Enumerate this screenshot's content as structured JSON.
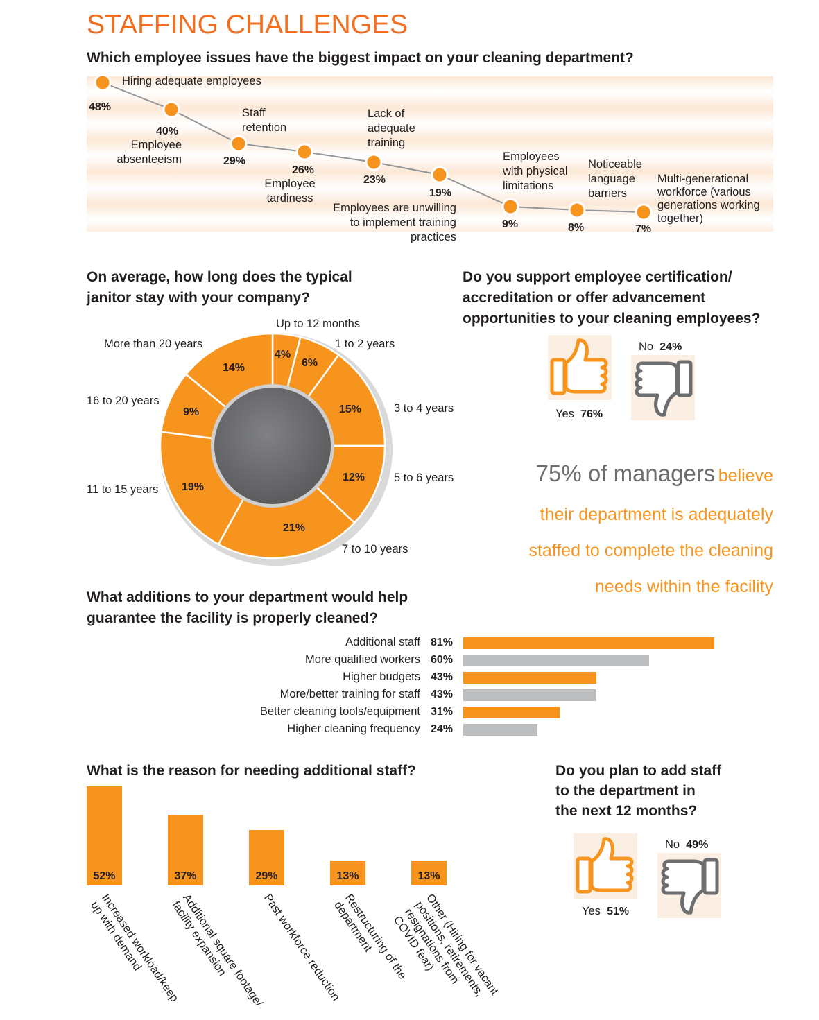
{
  "title": "STAFFING CHALLENGES",
  "colors": {
    "orange": "#f7941d",
    "gray": "#bcbec0",
    "title_orange": "#f26f21",
    "donut_center": "#6d6e70"
  },
  "q1": {
    "question": "Which employee issues have the biggest impact on your cleaning department?",
    "items": [
      {
        "label": "Hiring adequate employees",
        "pct": "48%"
      },
      {
        "label": "Employee absenteeism",
        "pct": "40%"
      },
      {
        "label": "Staff retention",
        "pct": "29%"
      },
      {
        "label": "Employee tardiness",
        "pct": "26%"
      },
      {
        "label": "Lack of adequate training",
        "pct": "23%"
      },
      {
        "label": "Employees are unwilling to implement training practices",
        "pct": "19%"
      },
      {
        "label": "Employees with physical limitations",
        "pct": "9%"
      },
      {
        "label": "Noticeable language barriers",
        "pct": "8%"
      },
      {
        "label": "Multi-generational workforce (various generations working together)",
        "pct": "7%"
      }
    ]
  },
  "q2": {
    "question_line1": "On average, how long does the typical",
    "question_line2": "janitor stay with your company?",
    "labels": [
      "Up to 12 months",
      "1 to 2 years",
      "3 to 4 years",
      "5 to 6 years",
      "7 to 10 years",
      "11 to 15 years",
      "16 to 20 years",
      "More than 20 years"
    ],
    "pcts": [
      "4%",
      "6%",
      "15%",
      "12%",
      "21%",
      "19%",
      "9%",
      "14%"
    ]
  },
  "q3": {
    "question_line1": "Do you support employee certification/",
    "question_line2": "accreditation or offer advancement",
    "question_line3": "opportunities to your cleaning employees?",
    "yes_label": "Yes",
    "yes_pct": "76%",
    "no_label": "No",
    "no_pct": "24%"
  },
  "stat": {
    "big": "75% of managers",
    "line1": "believe",
    "line2": "their department is adequately",
    "line3": "staffed to complete the cleaning",
    "line4": "needs within the facility"
  },
  "q4": {
    "question_line1": "What additions to your department would help",
    "question_line2": "guarantee the facility is properly cleaned?",
    "items": [
      {
        "label": "Additional staff",
        "pct": "81%"
      },
      {
        "label": "More qualified workers",
        "pct": "60%"
      },
      {
        "label": "Higher budgets",
        "pct": "43%"
      },
      {
        "label": "More/better training for staff",
        "pct": "43%"
      },
      {
        "label": "Better cleaning tools/equipment",
        "pct": "31%"
      },
      {
        "label": "Higher cleaning frequency",
        "pct": "24%"
      }
    ]
  },
  "q5": {
    "question": "What is the reason for needing additional staff?",
    "items": [
      {
        "label1": "Increased workload/keep",
        "label2": "up with demand",
        "label3": "",
        "label4": "",
        "pct": "52%"
      },
      {
        "label1": "Additional square footage/",
        "label2": "facility expansion",
        "label3": "",
        "label4": "",
        "pct": "37%"
      },
      {
        "label1": "Past workforce reduction",
        "label2": "",
        "label3": "",
        "label4": "",
        "pct": "29%"
      },
      {
        "label1": "Restructuring of the",
        "label2": "department",
        "label3": "",
        "label4": "",
        "pct": "13%"
      },
      {
        "label1": "Other (Hiring for vacant",
        "label2": "positions, retirements,",
        "label3": "resignations from",
        "label4": "COVID fear)",
        "pct": "13%"
      }
    ]
  },
  "q6": {
    "question_line1": "Do you plan to add staff",
    "question_line2": "to the department in",
    "question_line3": "the next 12 months?",
    "yes_label": "Yes",
    "yes_pct": "51%",
    "no_label": "No",
    "no_pct": "49%"
  },
  "chart_data": [
    {
      "type": "line",
      "title": "Which employee issues have the biggest impact on your cleaning department?",
      "categories": [
        "Hiring adequate employees",
        "Employee absenteeism",
        "Staff retention",
        "Employee tardiness",
        "Lack of adequate training",
        "Employees are unwilling to implement training practices",
        "Employees with physical limitations",
        "Noticeable language barriers",
        "Multi-generational workforce (various generations working together)"
      ],
      "values": [
        48,
        40,
        29,
        26,
        23,
        19,
        9,
        8,
        7
      ]
    },
    {
      "type": "pie",
      "title": "On average, how long does the typical janitor stay with your company?",
      "categories": [
        "Up to 12 months",
        "1 to 2 years",
        "3 to 4 years",
        "5 to 6 years",
        "7 to 10 years",
        "11 to 15 years",
        "16 to 20 years",
        "More than 20 years"
      ],
      "values": [
        4,
        6,
        15,
        12,
        21,
        19,
        9,
        14
      ]
    },
    {
      "type": "pie",
      "title": "Do you support employee certification/accreditation or offer advancement opportunities to your cleaning employees?",
      "categories": [
        "Yes",
        "No"
      ],
      "values": [
        76,
        24
      ]
    },
    {
      "type": "bar",
      "title": "What additions to your department would help guarantee the facility is properly cleaned?",
      "categories": [
        "Additional staff",
        "More qualified workers",
        "Higher budgets",
        "More/better training for staff",
        "Better cleaning tools/equipment",
        "Higher cleaning frequency"
      ],
      "values": [
        81,
        60,
        43,
        43,
        31,
        24
      ]
    },
    {
      "type": "bar",
      "title": "What is the reason for needing additional staff?",
      "categories": [
        "Increased workload/keep up with demand",
        "Additional square footage/facility expansion",
        "Past workforce reduction",
        "Restructuring of the department",
        "Other (Hiring for vacant positions, retirements, resignations from COVID fear)"
      ],
      "values": [
        52,
        37,
        29,
        13,
        13
      ]
    },
    {
      "type": "pie",
      "title": "Do you plan to add staff to the department in the next 12 months?",
      "categories": [
        "Yes",
        "No"
      ],
      "values": [
        51,
        49
      ]
    }
  ]
}
